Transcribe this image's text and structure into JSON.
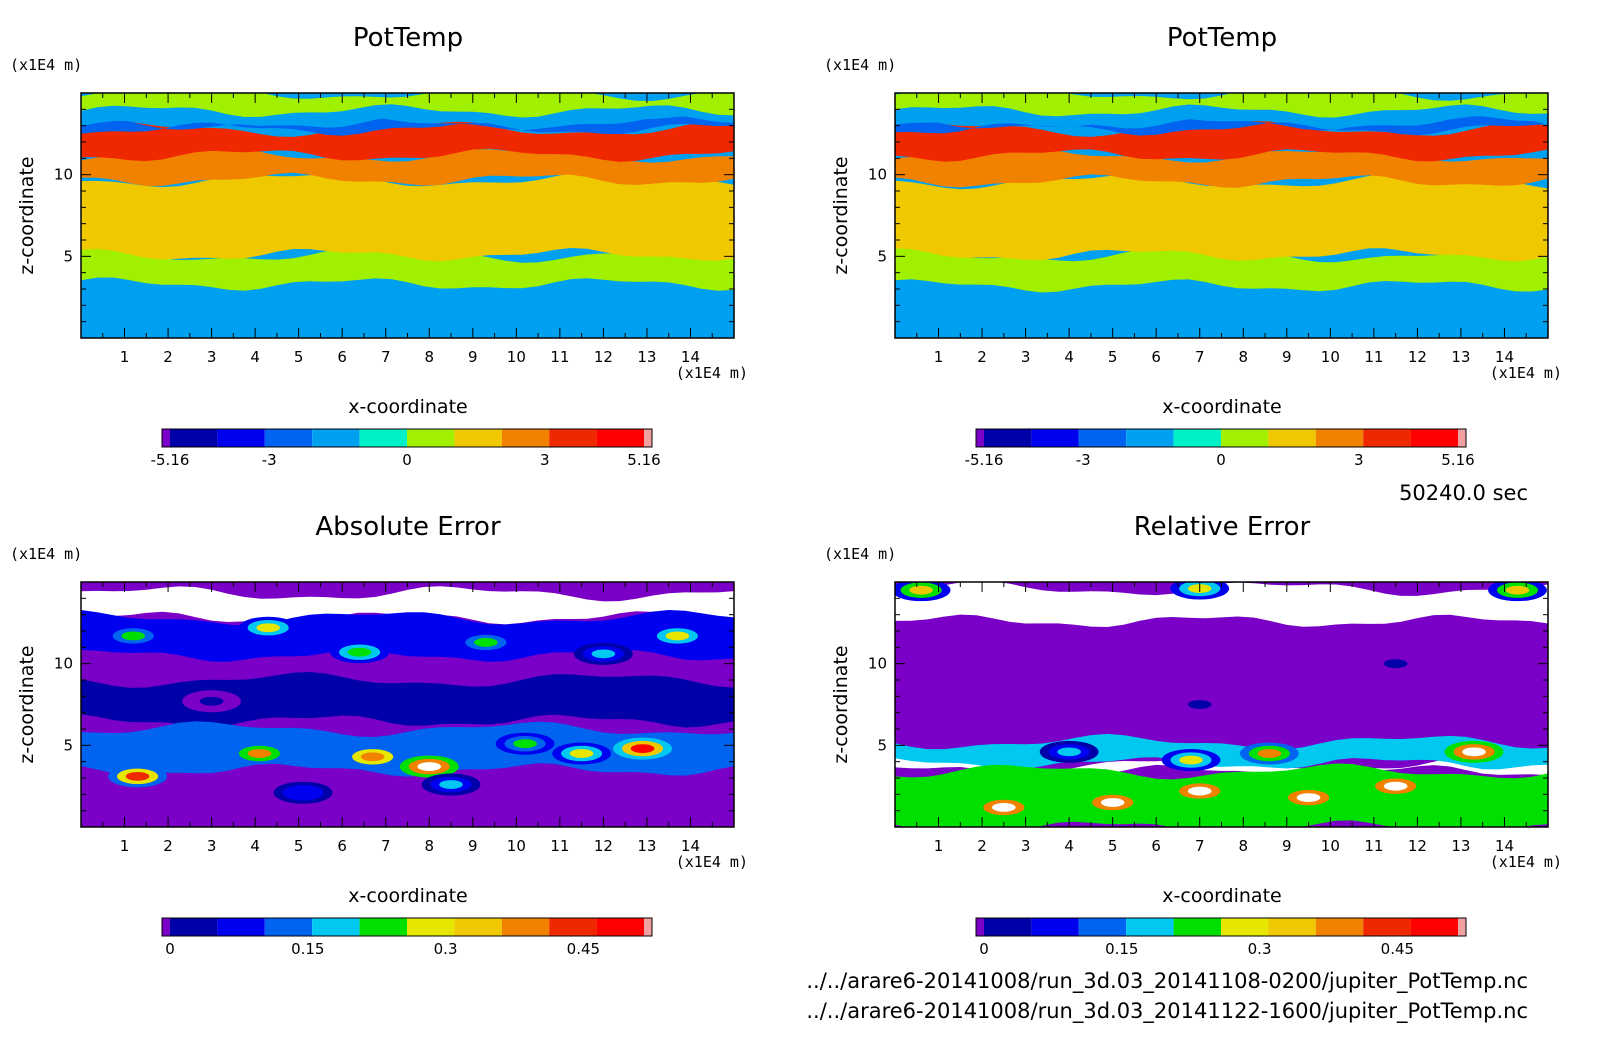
{
  "timestamp": "50240.0 sec",
  "file_paths": [
    "../../arare6-20141008/run_3d.03_20141108-0200/jupiter_PotTemp.nc",
    "../../arare6-20141008/run_3d.03_20141122-1600/jupiter_PotTemp.nc"
  ],
  "chart_data": [
    {
      "type": "heatmap",
      "title": "PotTemp",
      "xlabel": "x-coordinate",
      "ylabel": "z-coordinate",
      "x_unit": "(x1E4 m)",
      "y_unit": "(x1E4 m)",
      "xlim": [
        0,
        15
      ],
      "ylim": [
        0,
        15
      ],
      "x_ticks": [
        "1",
        "2",
        "3",
        "4",
        "5",
        "6",
        "7",
        "8",
        "9",
        "10",
        "11",
        "12",
        "13",
        "14"
      ],
      "y_ticks": [
        "5",
        "10"
      ],
      "colorbar": {
        "range": [
          -5.16,
          5.16
        ],
        "labels": [
          "-5.16",
          "-3",
          "0",
          "3",
          "5.16"
        ],
        "colors": [
          "#7a00c8",
          "#0000a8",
          "#0000f0",
          "#0064f0",
          "#00a0f0",
          "#00f0c8",
          "#a0f000",
          "#f0c800",
          "#f08200",
          "#f02800",
          "#ff0000",
          "#f0a0a0"
        ]
      },
      "bands": [
        {
          "z_min": 0,
          "z_max": 3.3,
          "value": -0.5
        },
        {
          "z_min": 3.3,
          "z_max": 5.1,
          "value": 0.5
        },
        {
          "z_min": 5.1,
          "z_max": 9.7,
          "value": 1.5
        },
        {
          "z_min": 9.7,
          "z_max": 11.2,
          "value": 2.5
        },
        {
          "z_min": 11.2,
          "z_max": 12.8,
          "value": 3.5
        },
        {
          "z_min": 12.8,
          "z_max": 13.2,
          "value": -1.5
        },
        {
          "z_min": 13.2,
          "z_max": 13.9,
          "value": -0.5
        },
        {
          "z_min": 13.9,
          "z_max": 15,
          "value": 0.5
        }
      ]
    },
    {
      "type": "heatmap",
      "title": "PotTemp",
      "xlabel": "x-coordinate",
      "ylabel": "z-coordinate",
      "x_unit": "(x1E4 m)",
      "y_unit": "(x1E4 m)",
      "xlim": [
        0,
        15
      ],
      "ylim": [
        0,
        15
      ],
      "x_ticks": [
        "1",
        "2",
        "3",
        "4",
        "5",
        "6",
        "7",
        "8",
        "9",
        "10",
        "11",
        "12",
        "13",
        "14"
      ],
      "y_ticks": [
        "5",
        "10"
      ],
      "colorbar": {
        "range": [
          -5.16,
          5.16
        ],
        "labels": [
          "-5.16",
          "-3",
          "0",
          "3",
          "5.16"
        ],
        "colors": [
          "#7a00c8",
          "#0000a8",
          "#0000f0",
          "#0064f0",
          "#00a0f0",
          "#00f0c8",
          "#a0f000",
          "#f0c800",
          "#f08200",
          "#f02800",
          "#ff0000",
          "#f0a0a0"
        ]
      },
      "bands": [
        {
          "z_min": 0,
          "z_max": 3.2,
          "value": -0.5
        },
        {
          "z_min": 3.2,
          "z_max": 5.1,
          "value": 0.5
        },
        {
          "z_min": 5.1,
          "z_max": 9.6,
          "value": 1.5
        },
        {
          "z_min": 9.6,
          "z_max": 11.2,
          "value": 2.5
        },
        {
          "z_min": 11.2,
          "z_max": 12.8,
          "value": 3.5
        },
        {
          "z_min": 12.8,
          "z_max": 13.2,
          "value": -1.5
        },
        {
          "z_min": 13.2,
          "z_max": 13.9,
          "value": -0.5
        },
        {
          "z_min": 13.9,
          "z_max": 15,
          "value": 0.5
        }
      ]
    },
    {
      "type": "heatmap",
      "title": "Absolute Error",
      "xlabel": "x-coordinate",
      "ylabel": "z-coordinate",
      "x_unit": "(x1E4 m)",
      "y_unit": "(x1E4 m)",
      "xlim": [
        0,
        15
      ],
      "ylim": [
        0,
        15
      ],
      "x_ticks": [
        "1",
        "2",
        "3",
        "4",
        "5",
        "6",
        "7",
        "8",
        "9",
        "10",
        "11",
        "12",
        "13",
        "14"
      ],
      "y_ticks": [
        "5",
        "10"
      ],
      "colorbar": {
        "range": [
          0,
          0.516
        ],
        "labels": [
          "0",
          "0.15",
          "0.3",
          "0.45"
        ],
        "colors": [
          "#7a00c8",
          "#0000a8",
          "#0000f0",
          "#0064f0",
          "#00c8f0",
          "#00e000",
          "#e6e600",
          "#f0c800",
          "#f08200",
          "#f02800",
          "#ff0000",
          "#f0a0a0"
        ]
      },
      "background_value": 0.02,
      "bands": [
        {
          "z_min": 12.8,
          "z_max": 14.3,
          "value": 0.6
        },
        {
          "z_min": 10.5,
          "z_max": 12.8,
          "value": 0.1
        },
        {
          "z_min": 6.5,
          "z_max": 9.0,
          "value": 0.06
        },
        {
          "z_min": 3.5,
          "z_max": 6.0,
          "value": 0.16
        }
      ],
      "blobs": [
        {
          "x": 1.2,
          "z": 11.7,
          "v": 0.24
        },
        {
          "x": 4.3,
          "z": 12.2,
          "v": 0.3
        },
        {
          "x": 6.4,
          "z": 10.7,
          "v": 0.27
        },
        {
          "x": 9.3,
          "z": 11.3,
          "v": 0.24
        },
        {
          "x": 12.0,
          "z": 10.6,
          "v": 0.2
        },
        {
          "x": 13.7,
          "z": 11.7,
          "v": 0.3
        },
        {
          "x": 4.1,
          "z": 4.5,
          "v": 0.38
        },
        {
          "x": 6.7,
          "z": 4.3,
          "v": 0.42
        },
        {
          "x": 8.0,
          "z": 3.7,
          "v": 0.6
        },
        {
          "x": 12.9,
          "z": 4.8,
          "v": 0.48
        },
        {
          "x": 1.3,
          "z": 3.1,
          "v": 0.45
        },
        {
          "x": 10.2,
          "z": 5.1,
          "v": 0.26
        },
        {
          "x": 3.0,
          "z": 7.7,
          "v": 0.06
        },
        {
          "x": 8.5,
          "z": 2.6,
          "v": 0.2
        },
        {
          "x": 5.1,
          "z": 2.1,
          "v": 0.14
        },
        {
          "x": 11.5,
          "z": 4.5,
          "v": 0.3
        }
      ]
    },
    {
      "type": "heatmap",
      "title": "Relative Error",
      "xlabel": "x-coordinate",
      "ylabel": "z-coordinate",
      "x_unit": "(x1E4 m)",
      "y_unit": "(x1E4 m)",
      "xlim": [
        0,
        15
      ],
      "ylim": [
        0,
        15
      ],
      "x_ticks": [
        "1",
        "2",
        "3",
        "4",
        "5",
        "6",
        "7",
        "8",
        "9",
        "10",
        "11",
        "12",
        "13",
        "14"
      ],
      "y_ticks": [
        "5",
        "10"
      ],
      "colorbar": {
        "range": [
          0,
          0.516
        ],
        "labels": [
          "0",
          "0.15",
          "0.3",
          "0.45"
        ],
        "colors": [
          "#7a00c8",
          "#0000a8",
          "#0000f0",
          "#0064f0",
          "#00c8f0",
          "#00e000",
          "#e6e600",
          "#f0c800",
          "#f08200",
          "#f02800",
          "#ff0000",
          "#f0a0a0"
        ]
      },
      "background_value": 0.02,
      "bands": [
        {
          "z_min": 12.6,
          "z_max": 14.6,
          "value": 0.6
        },
        {
          "z_min": 3.4,
          "z_max": 3.9,
          "value": 0.6
        },
        {
          "z_min": 3.9,
          "z_max": 5.2,
          "value": 0.2
        },
        {
          "z_min": 0,
          "z_max": 3.4,
          "value": 0.25
        }
      ],
      "blobs": [
        {
          "x": 2.5,
          "z": 1.2,
          "v": 0.6
        },
        {
          "x": 5.0,
          "z": 1.5,
          "v": 0.6
        },
        {
          "x": 7.0,
          "z": 2.2,
          "v": 0.6
        },
        {
          "x": 9.5,
          "z": 1.8,
          "v": 0.6
        },
        {
          "x": 11.5,
          "z": 2.5,
          "v": 0.6
        },
        {
          "x": 13.3,
          "z": 4.6,
          "v": 0.6
        },
        {
          "x": 8.6,
          "z": 4.5,
          "v": 0.4
        },
        {
          "x": 6.8,
          "z": 4.1,
          "v": 0.3
        },
        {
          "x": 4.0,
          "z": 4.6,
          "v": 0.2
        },
        {
          "x": 7.0,
          "z": 7.5,
          "v": 0.06
        },
        {
          "x": 11.5,
          "z": 10.0,
          "v": 0.05
        },
        {
          "x": 0.6,
          "z": 14.5,
          "v": 0.35
        },
        {
          "x": 7.0,
          "z": 14.6,
          "v": 0.3
        },
        {
          "x": 14.3,
          "z": 14.5,
          "v": 0.35
        }
      ]
    }
  ]
}
